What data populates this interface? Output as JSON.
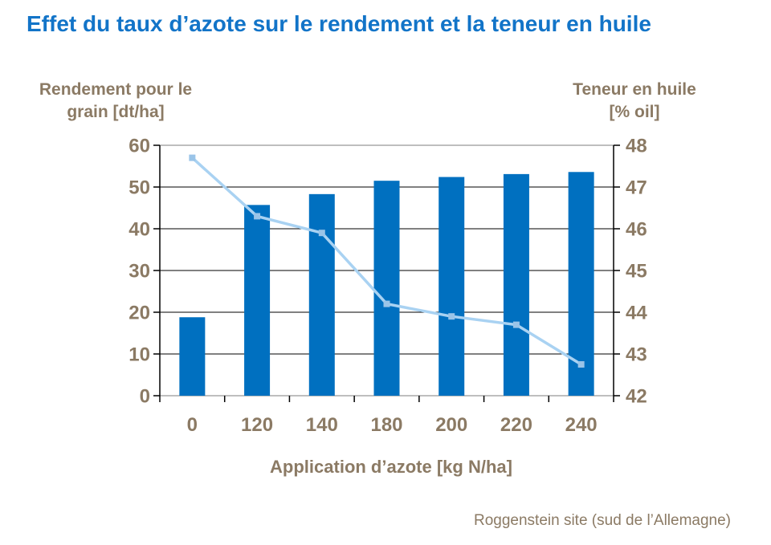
{
  "page": {
    "title": "Effet du taux d’azote sur le rendement et la teneur en huile",
    "footer": "Roggenstein site (sud de l’Allemagne)"
  },
  "colors": {
    "title": "#1274C8",
    "axis_text": "#8B7A64",
    "bar": "#0070C0",
    "line": "#A9D2F2",
    "marker": "#9AC4E8",
    "gridline": "#000000",
    "axis_line": "#969696",
    "tick": "#000000"
  },
  "chart_data": {
    "type": "bar",
    "subtype": "bar+line combo, dual y-axes",
    "title": "Effet du taux d’azote sur le rendement et la teneur en huile",
    "categories": [
      "0",
      "120",
      "140",
      "180",
      "200",
      "220",
      "240"
    ],
    "series": [
      {
        "name": "Rendement pour le grain",
        "type": "bar",
        "axis": "left",
        "values": [
          18.8,
          45.7,
          48.3,
          51.5,
          52.4,
          53.1,
          53.6
        ]
      },
      {
        "name": "Teneur en huile",
        "type": "line",
        "axis": "right",
        "marker": "square",
        "values": [
          47.7,
          46.3,
          45.9,
          44.2,
          43.9,
          43.7,
          42.75
        ]
      }
    ],
    "left_axis": {
      "title_line1": "Rendement pour le",
      "title_line2": "grain [dt/ha]",
      "min": 0,
      "max": 60,
      "step": 10,
      "tick_labels": [
        "60",
        "50",
        "40",
        "30",
        "20",
        "10",
        "0"
      ]
    },
    "right_axis": {
      "title_line1": "Teneur en huile",
      "title_line2": "[% oil]",
      "min": 42,
      "max": 48,
      "step": 1,
      "tick_labels": [
        "48",
        "47",
        "46",
        "45",
        "44",
        "43",
        "42"
      ]
    },
    "x_axis": {
      "title": "Application d’azote [kg N/ha]"
    },
    "grid": true,
    "legend": "none"
  }
}
